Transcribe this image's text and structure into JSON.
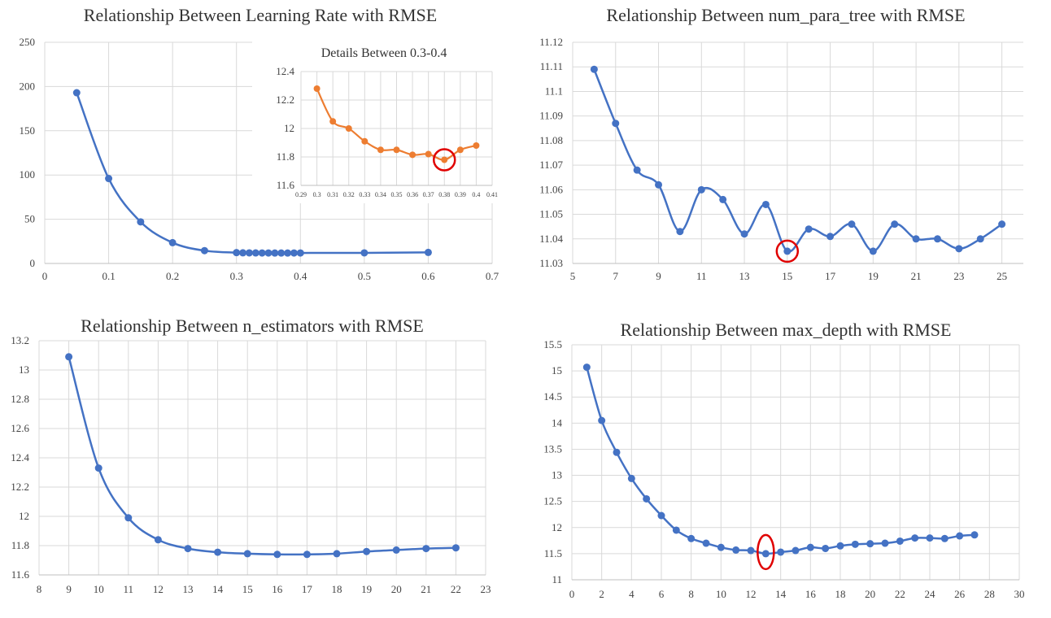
{
  "chart_data": [
    {
      "type": "line",
      "title": "Relationship Between Learning Rate with RMSE",
      "xlim": [
        0,
        0.7
      ],
      "ylim": [
        0,
        250
      ],
      "xticks": [
        0,
        0.1,
        0.2,
        0.3,
        0.4,
        0.5,
        0.6,
        0.7
      ],
      "yticks": [
        0,
        50,
        100,
        150,
        200,
        250
      ],
      "xtick_labels": [
        "0",
        "0.1",
        "0.2",
        "0.3",
        "0.4",
        "0.5",
        "0.6",
        "0.7"
      ],
      "ytick_labels": [
        "0",
        "50",
        "100",
        "150",
        "200",
        "250"
      ],
      "color": "#4472c4",
      "grid": true,
      "series": [
        {
          "x": [
            0.05,
            0.1,
            0.15,
            0.2,
            0.25,
            0.3,
            0.31,
            0.32,
            0.33,
            0.34,
            0.35,
            0.36,
            0.37,
            0.38,
            0.39,
            0.4,
            0.5,
            0.6
          ],
          "values": [
            193,
            96,
            47,
            23.5,
            14.5,
            12.28,
            12.05,
            12.0,
            11.91,
            11.85,
            11.85,
            11.82,
            11.82,
            11.78,
            11.85,
            11.88,
            12.0,
            12.5
          ]
        }
      ]
    },
    {
      "type": "line",
      "title": "Details Between 0.3-0.4",
      "inset_of": 0,
      "xlim": [
        0.29,
        0.41
      ],
      "ylim": [
        11.6,
        12.4
      ],
      "xticks": [
        0.29,
        0.3,
        0.31,
        0.32,
        0.33,
        0.34,
        0.35,
        0.36,
        0.37,
        0.38,
        0.39,
        0.4,
        0.41
      ],
      "yticks": [
        11.6,
        11.8,
        12.0,
        12.2,
        12.4
      ],
      "xtick_labels": [
        "0.29",
        "0.3",
        "0.31",
        "0.32",
        "0.33",
        "0.34",
        "0.35",
        "0.36",
        "0.37",
        "0.38",
        "0.39",
        "0.4",
        "0.41"
      ],
      "ytick_labels": [
        "11.6",
        "11.8",
        "12",
        "12.2",
        "12.4"
      ],
      "color": "#ed7d31",
      "grid": true,
      "highlight": {
        "x": 0.38,
        "y": 11.78,
        "color": "#e00000"
      },
      "series": [
        {
          "x": [
            0.3,
            0.31,
            0.32,
            0.33,
            0.34,
            0.35,
            0.36,
            0.37,
            0.38,
            0.39,
            0.4
          ],
          "values": [
            12.28,
            12.05,
            12.0,
            11.91,
            11.85,
            11.85,
            11.815,
            11.82,
            11.78,
            11.85,
            11.88
          ]
        }
      ]
    },
    {
      "type": "line",
      "title": "Relationship Between num_para_tree with RMSE",
      "xlim": [
        5,
        26
      ],
      "ylim": [
        11.03,
        11.12
      ],
      "xticks": [
        5,
        7,
        9,
        11,
        13,
        15,
        17,
        19,
        21,
        23,
        25
      ],
      "yticks": [
        11.03,
        11.04,
        11.05,
        11.06,
        11.07,
        11.08,
        11.09,
        11.1,
        11.11,
        11.12
      ],
      "xtick_labels": [
        "5",
        "7",
        "9",
        "11",
        "13",
        "15",
        "17",
        "19",
        "21",
        "23",
        "25"
      ],
      "ytick_labels": [
        "11.03",
        "11.04",
        "11.05",
        "11.06",
        "11.07",
        "11.08",
        "11.09",
        "11.1",
        "11.11",
        "11.12"
      ],
      "color": "#4472c4",
      "grid": true,
      "highlight": {
        "x": 15,
        "y": 11.035,
        "color": "#e00000"
      },
      "series": [
        {
          "x": [
            6,
            7,
            8,
            9,
            10,
            11,
            12,
            13,
            14,
            15,
            16,
            17,
            18,
            19,
            20,
            21,
            22,
            23,
            24,
            25
          ],
          "values": [
            11.109,
            11.087,
            11.068,
            11.062,
            11.043,
            11.06,
            11.056,
            11.042,
            11.054,
            11.035,
            11.044,
            11.041,
            11.046,
            11.035,
            11.046,
            11.04,
            11.04,
            11.036,
            11.04,
            11.046
          ]
        }
      ]
    },
    {
      "type": "line",
      "title": "Relationship Between n_estimators with RMSE",
      "xlim": [
        8,
        23
      ],
      "ylim": [
        11.6,
        13.2
      ],
      "xticks": [
        8,
        9,
        10,
        11,
        12,
        13,
        14,
        15,
        16,
        17,
        18,
        19,
        20,
        21,
        22,
        23
      ],
      "yticks": [
        11.6,
        11.8,
        12.0,
        12.2,
        12.4,
        12.6,
        12.8,
        13.0,
        13.2
      ],
      "xtick_labels": [
        "8",
        "9",
        "10",
        "11",
        "12",
        "13",
        "14",
        "15",
        "16",
        "17",
        "18",
        "19",
        "20",
        "21",
        "22",
        "23"
      ],
      "ytick_labels": [
        "11.6",
        "11.8",
        "12",
        "12.2",
        "12.4",
        "12.6",
        "12.8",
        "13",
        "13.2"
      ],
      "color": "#4472c4",
      "grid": true,
      "series": [
        {
          "x": [
            9,
            10,
            11,
            12,
            13,
            14,
            15,
            16,
            17,
            18,
            19,
            20,
            21,
            22
          ],
          "values": [
            13.09,
            12.33,
            11.99,
            11.84,
            11.78,
            11.755,
            11.745,
            11.74,
            11.74,
            11.745,
            11.76,
            11.77,
            11.78,
            11.785
          ]
        }
      ]
    },
    {
      "type": "line",
      "title": "Relationship Between max_depth with RMSE",
      "xlim": [
        0,
        30
      ],
      "ylim": [
        11,
        15.5
      ],
      "xticks": [
        0,
        2,
        4,
        6,
        8,
        10,
        12,
        14,
        16,
        18,
        20,
        22,
        24,
        26,
        28,
        30
      ],
      "yticks": [
        11,
        11.5,
        12,
        12.5,
        13,
        13.5,
        14,
        14.5,
        15,
        15.5
      ],
      "xtick_labels": [
        "0",
        "2",
        "4",
        "6",
        "8",
        "10",
        "12",
        "14",
        "16",
        "18",
        "20",
        "22",
        "24",
        "26",
        "28",
        "30"
      ],
      "ytick_labels": [
        "11",
        "11.5",
        "12",
        "12.5",
        "13",
        "13.5",
        "14",
        "14.5",
        "15",
        "15.5"
      ],
      "color": "#4472c4",
      "grid": true,
      "highlight": {
        "x": 13,
        "y": 11.5,
        "color": "#e00000",
        "shape": "ellipse"
      },
      "series": [
        {
          "x": [
            1,
            2,
            3,
            4,
            5,
            6,
            7,
            8,
            9,
            10,
            11,
            12,
            13,
            14,
            15,
            16,
            17,
            18,
            19,
            20,
            21,
            22,
            23,
            24,
            25,
            26,
            27
          ],
          "values": [
            15.07,
            14.05,
            13.44,
            12.94,
            12.55,
            12.23,
            11.95,
            11.79,
            11.7,
            11.62,
            11.57,
            11.56,
            11.5,
            11.53,
            11.56,
            11.62,
            11.6,
            11.65,
            11.68,
            11.69,
            11.7,
            11.74,
            11.8,
            11.8,
            11.79,
            11.84,
            11.86
          ]
        }
      ]
    }
  ]
}
